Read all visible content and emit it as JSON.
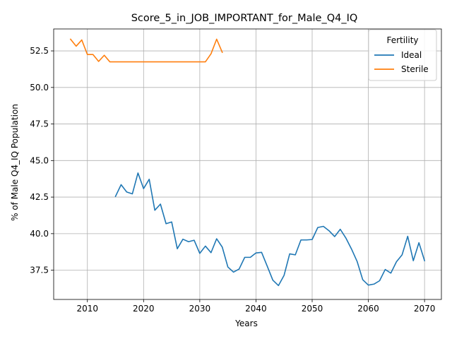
{
  "chart_data": {
    "type": "line",
    "title": "Score_5_in_JOB_IMPORTANT_for_Male_Q4_IQ",
    "xlabel": "Years",
    "ylabel": "% of Male Q4_IQ Population",
    "xlim": [
      2004,
      2073
    ],
    "ylim": [
      35.5,
      54.0
    ],
    "xticks": [
      2010,
      2020,
      2030,
      2040,
      2050,
      2060,
      2070
    ],
    "yticks": [
      37.5,
      40.0,
      42.5,
      45.0,
      47.5,
      50.0,
      52.5
    ],
    "ytick_labels": [
      "37.5",
      "40.0",
      "42.5",
      "45.0",
      "47.5",
      "50.0",
      "52.5"
    ],
    "grid": true,
    "legend": {
      "title": "Fertility",
      "placement": "top-right"
    },
    "series": [
      {
        "name": "Ideal",
        "color": "#1f77b4",
        "x": [
          2015,
          2016,
          2017,
          2018,
          2019,
          2020,
          2021,
          2022,
          2023,
          2024,
          2025,
          2026,
          2027,
          2028,
          2029,
          2030,
          2031,
          2032,
          2033,
          2034,
          2035,
          2036,
          2037,
          2038,
          2039,
          2040,
          2041,
          2042,
          2043,
          2044,
          2045,
          2046,
          2047,
          2048,
          2049,
          2050,
          2051,
          2052,
          2053,
          2054,
          2055,
          2056,
          2057,
          2058,
          2059,
          2060,
          2061,
          2062,
          2063,
          2064,
          2065,
          2066,
          2067,
          2068,
          2069,
          2070
        ],
        "y": [
          42.55,
          43.35,
          42.85,
          42.72,
          44.15,
          43.08,
          43.72,
          41.6,
          42.02,
          40.68,
          40.8,
          38.97,
          39.62,
          39.45,
          39.55,
          38.65,
          39.15,
          38.7,
          39.65,
          39.08,
          37.72,
          37.37,
          37.58,
          38.38,
          38.38,
          38.68,
          38.72,
          37.78,
          36.82,
          36.45,
          37.15,
          38.62,
          38.55,
          39.57,
          39.57,
          39.6,
          40.42,
          40.5,
          40.2,
          39.8,
          40.3,
          39.7,
          38.95,
          38.1,
          36.85,
          36.48,
          36.55,
          36.78,
          37.55,
          37.3,
          38.08,
          38.55,
          39.82,
          38.15,
          39.38,
          38.15
        ]
      },
      {
        "name": "Sterile",
        "color": "#ff7f0e",
        "x": [
          2007,
          2008,
          2009,
          2010,
          2011,
          2012,
          2013,
          2014,
          2015,
          2016,
          2017,
          2018,
          2019,
          2020,
          2021,
          2022,
          2023,
          2024,
          2025,
          2026,
          2027,
          2028,
          2029,
          2030,
          2031,
          2032,
          2033,
          2034
        ],
        "y": [
          53.3,
          52.82,
          53.25,
          52.25,
          52.25,
          51.78,
          52.2,
          51.75,
          51.75,
          51.75,
          51.75,
          51.75,
          51.75,
          51.75,
          51.75,
          51.75,
          51.75,
          51.75,
          51.75,
          51.75,
          51.75,
          51.75,
          51.75,
          51.75,
          51.75,
          52.3,
          53.3,
          52.4
        ]
      }
    ]
  }
}
